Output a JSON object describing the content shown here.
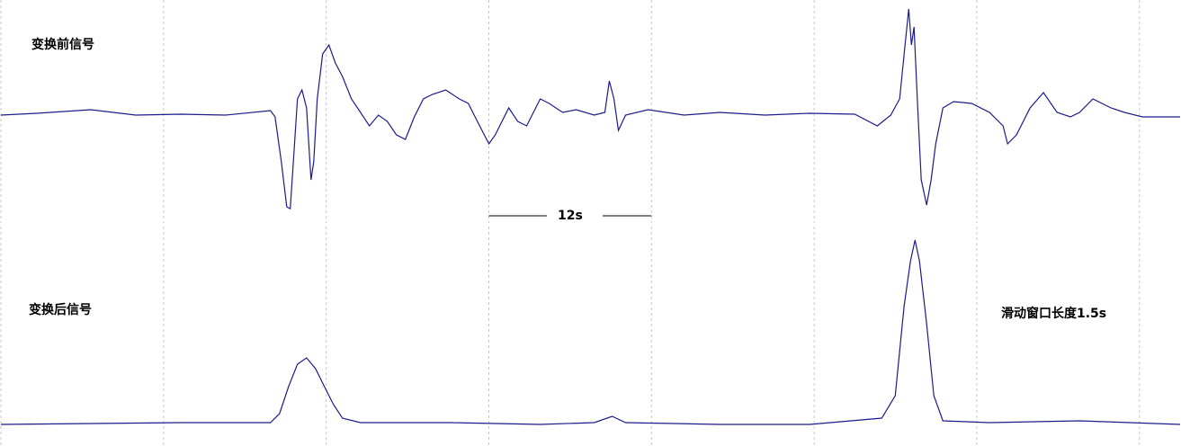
{
  "chart_data": [
    {
      "type": "line",
      "title": "变换前信号",
      "color": "#1c1c8a",
      "xlim": [
        0,
        87
      ],
      "ylim": [
        -1.2,
        1.28
      ],
      "xticks": [
        0,
        12,
        24,
        36,
        48,
        60,
        72,
        84
      ],
      "grid": true,
      "scale_bar": {
        "label": "12s",
        "x": [
          36,
          48
        ]
      },
      "x": [
        0,
        2.65,
        6.63,
        9.95,
        13.26,
        16.58,
        19.89,
        20.23,
        20.69,
        21.09,
        21.35,
        21.62,
        21.88,
        22.21,
        22.55,
        22.88,
        23.08,
        23.34,
        23.74,
        24.2,
        24.67,
        25.2,
        25.86,
        26.53,
        27.19,
        27.85,
        28.51,
        29.18,
        29.84,
        30.5,
        31.17,
        31.83,
        32.82,
        33.82,
        34.48,
        35.15,
        36.01,
        36.47,
        37.47,
        38.13,
        38.79,
        39.79,
        40.45,
        41.45,
        42.44,
        43.77,
        44.56,
        44.89,
        45.23,
        45.56,
        46.09,
        47.75,
        50.4,
        53.05,
        56.37,
        59.68,
        63.0,
        64.66,
        65.65,
        66.31,
        66.64,
        66.98,
        67.18,
        67.37,
        67.64,
        67.9,
        68.3,
        68.63,
        68.97,
        69.5,
        70.29,
        71.62,
        72.94,
        73.94,
        74.27,
        74.93,
        75.93,
        76.92,
        77.92,
        78.91,
        79.58,
        80.57,
        81.9,
        82.89,
        84.22,
        87
      ],
      "values": [
        0,
        0.02,
        0.06,
        0,
        0.01,
        0,
        0.05,
        -0.02,
        -0.52,
        -1.02,
        -1.04,
        -0.42,
        0.18,
        0.28,
        0.08,
        -0.72,
        -0.52,
        0.18,
        0.68,
        0.78,
        0.58,
        0.43,
        0.18,
        0.03,
        -0.12,
        0,
        -0.07,
        -0.22,
        -0.27,
        -0.02,
        0.18,
        0.23,
        0.28,
        0.18,
        0.13,
        -0.07,
        -0.32,
        -0.22,
        0.08,
        -0.07,
        -0.12,
        0.18,
        0.13,
        0.03,
        0.06,
        0,
        0.03,
        0.38,
        0.18,
        -0.17,
        0,
        0.06,
        0,
        0.03,
        0,
        0.02,
        0.01,
        -0.12,
        0,
        0.18,
        0.68,
        1.18,
        0.78,
        0.98,
        0.08,
        -0.72,
        -1.0,
        -0.72,
        -0.32,
        0.08,
        0.15,
        0.13,
        0.03,
        -0.12,
        -0.32,
        -0.22,
        0.08,
        0.25,
        0.03,
        -0.02,
        0.03,
        0.18,
        0.08,
        0.03,
        -0.02,
        -0.02
      ]
    },
    {
      "type": "line",
      "title": "变换后信号",
      "annotation": "滑动窗口长度1.5s",
      "color": "#1c1c8a",
      "xlim": [
        0,
        87
      ],
      "ylim": [
        -0.24,
        2.2
      ],
      "xticks": [
        0,
        12,
        24,
        36,
        48,
        60,
        72,
        84
      ],
      "grid": true,
      "x": [
        0,
        13.26,
        19.89,
        20.56,
        21.22,
        21.88,
        22.55,
        23.21,
        23.87,
        24.54,
        25.2,
        26.53,
        33.15,
        39.79,
        43.77,
        45.1,
        46.09,
        53.05,
        59.68,
        64.99,
        65.98,
        66.64,
        67.11,
        67.44,
        67.77,
        68.3,
        68.83,
        69.5,
        72.94,
        79.58,
        87
      ],
      "values": [
        0,
        0.02,
        0.02,
        0.12,
        0.42,
        0.67,
        0.74,
        0.62,
        0.42,
        0.22,
        0.07,
        0.02,
        0.02,
        0,
        0.02,
        0.09,
        0.02,
        0,
        0,
        0.07,
        0.32,
        1.32,
        1.82,
        2.05,
        1.82,
        1.12,
        0.32,
        0.04,
        0.02,
        0.04,
        0
      ]
    }
  ]
}
